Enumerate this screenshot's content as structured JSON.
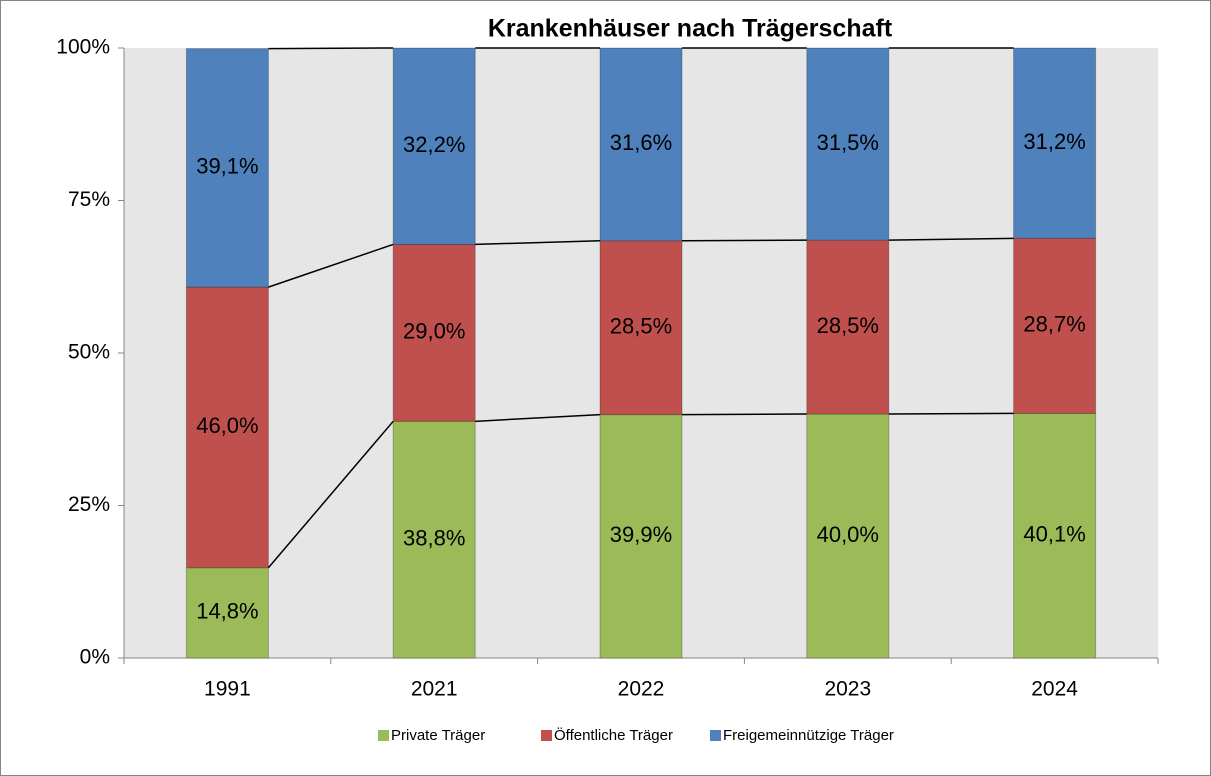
{
  "chart_data": {
    "type": "stacked_bar",
    "title": "Krankenhäuser nach Trägerschaft",
    "categories": [
      "1991",
      "2021",
      "2022",
      "2023",
      "2024"
    ],
    "series": [
      {
        "name": "Private Träger",
        "color": "#9bbb59",
        "values": [
          14.8,
          38.8,
          39.9,
          40.0,
          40.1
        ],
        "value_labels": [
          "14,8%",
          "38,8%",
          "39,9%",
          "40,0%",
          "40,1%"
        ]
      },
      {
        "name": "Öffentliche Träger",
        "color": "#c0504d",
        "values": [
          46.0,
          29.0,
          28.5,
          28.5,
          28.7
        ],
        "value_labels": [
          "46,0%",
          "29,0%",
          "28,5%",
          "28,5%",
          "28,7%"
        ]
      },
      {
        "name": "Freigemeinnützige Träger",
        "color": "#4f81bd",
        "values": [
          39.1,
          32.2,
          31.6,
          31.5,
          31.2
        ],
        "value_labels": [
          "39,1%",
          "32,2%",
          "31,6%",
          "31,5%",
          "31,2%"
        ]
      }
    ],
    "ylim": [
      0,
      100
    ],
    "yticks": [
      {
        "value": 0,
        "label": "0%"
      },
      {
        "value": 25,
        "label": "25%"
      },
      {
        "value": 50,
        "label": "50%"
      },
      {
        "value": 75,
        "label": "75%"
      },
      {
        "value": 100,
        "label": "100%"
      }
    ],
    "legend": "bottom"
  }
}
